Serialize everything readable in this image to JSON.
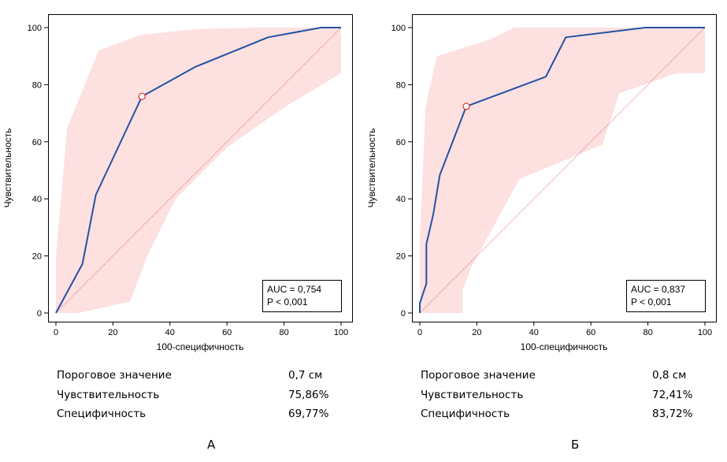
{
  "chart_data": [
    {
      "type": "line",
      "xlabel": "100-специфичность",
      "ylabel": "Чувствительность",
      "xlim": [
        0,
        100
      ],
      "ylim": [
        0,
        100
      ],
      "xticks": [
        0,
        20,
        40,
        60,
        80,
        100
      ],
      "yticks": [
        0,
        20,
        40,
        60,
        80,
        100
      ],
      "grid": false,
      "roc": {
        "x": [
          0,
          9.3,
          14,
          30.2,
          48.8,
          74.4,
          93,
          100
        ],
        "y": [
          0,
          17.2,
          41.4,
          75.9,
          86.2,
          96.6,
          100,
          100
        ]
      },
      "band_upper": {
        "x": [
          0,
          4,
          15,
          30,
          50,
          70,
          85,
          100
        ],
        "y": [
          20,
          65,
          92,
          97.5,
          99.5,
          100,
          100,
          100
        ]
      },
      "band_lower": {
        "x": [
          0,
          8,
          26,
          32,
          42,
          60,
          80,
          100
        ],
        "y": [
          0,
          0,
          4,
          20,
          40,
          58,
          72,
          84
        ]
      },
      "reference_line": {
        "x": [
          0,
          100
        ],
        "y": [
          0,
          100
        ]
      },
      "cutoff_point": {
        "x": 30.2,
        "y": 75.9
      },
      "annotation": {
        "auc": "AUC = 0,754",
        "p": "P < 0,001"
      },
      "stats": [
        {
          "label": "Пороговое значение",
          "value": "0,7 см"
        },
        {
          "label": "Чувствительность",
          "value": "75,86%"
        },
        {
          "label": "Специфичность",
          "value": "69,77%"
        }
      ],
      "caption": "А"
    },
    {
      "type": "line",
      "xlabel": "100-специфичность",
      "ylabel": "Чувствительность",
      "xlim": [
        0,
        100
      ],
      "ylim": [
        0,
        100
      ],
      "xticks": [
        0,
        20,
        40,
        60,
        80,
        100
      ],
      "yticks": [
        0,
        20,
        40,
        60,
        80,
        100
      ],
      "grid": false,
      "roc": {
        "x": [
          0,
          0,
          2.3,
          2.3,
          4.7,
          7,
          16.3,
          44.2,
          51.2,
          79.1,
          100
        ],
        "y": [
          0,
          3.4,
          10.3,
          24.1,
          34.5,
          48.3,
          72.4,
          82.8,
          96.6,
          100,
          100
        ]
      },
      "band_upper": {
        "x": [
          0,
          2,
          6,
          25,
          33,
          100
        ],
        "y": [
          25,
          72,
          90,
          96,
          100,
          100
        ]
      },
      "band_lower": {
        "x": [
          0,
          15,
          15,
          18,
          35,
          52,
          64,
          70,
          90,
          100
        ],
        "y": [
          0,
          0,
          8,
          16,
          47,
          54,
          59,
          77,
          84,
          84
        ]
      },
      "reference_line": {
        "x": [
          0,
          100
        ],
        "y": [
          0,
          100
        ]
      },
      "cutoff_point": {
        "x": 16.3,
        "y": 72.4
      },
      "annotation": {
        "auc": "AUC = 0,837",
        "p": "P < 0,001"
      },
      "stats": [
        {
          "label": "Пороговое значение",
          "value": "0,8 см"
        },
        {
          "label": "Чувствительность",
          "value": "72,41%"
        },
        {
          "label": "Специфичность",
          "value": "83,72%"
        }
      ],
      "caption": "Б"
    }
  ],
  "colors": {
    "curve": "#2352a3",
    "band": "#fde0e0",
    "reference": "#e07070",
    "cutoff_marker": "#e03c31",
    "axis": "#000000"
  }
}
